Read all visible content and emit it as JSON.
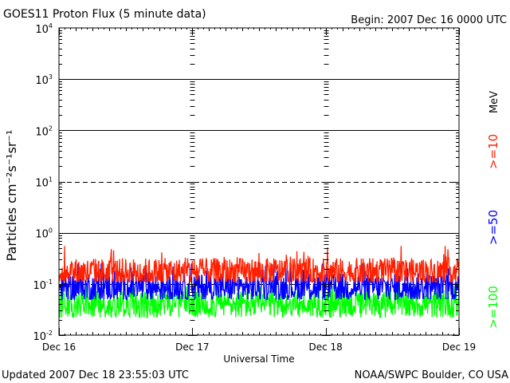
{
  "header": {
    "title": "GOES11 Proton Flux (5 minute data)",
    "begin": "Begin: 2007 Dec 16 0000 UTC"
  },
  "footer": {
    "updated": "Updated 2007 Dec 18 23:55:03 UTC",
    "source": "NOAA/SWPC Boulder, CO USA"
  },
  "chart_data": {
    "type": "line",
    "title": "GOES11 Proton Flux (5 minute data)",
    "xlabel": "Universal Time",
    "ylabel": "Particles cm⁻²s⁻¹sr⁻¹",
    "y_scale": "log",
    "ylim": [
      0.01,
      10000
    ],
    "y_ticks": [
      {
        "value": 0.01,
        "base": "10",
        "exp": "-2"
      },
      {
        "value": 0.1,
        "base": "10",
        "exp": "-1"
      },
      {
        "value": 1,
        "base": "10",
        "exp": "0"
      },
      {
        "value": 10,
        "base": "10",
        "exp": "1"
      },
      {
        "value": 100,
        "base": "10",
        "exp": "2"
      },
      {
        "value": 1000,
        "base": "10",
        "exp": "3"
      },
      {
        "value": 10000,
        "base": "10",
        "exp": "4"
      }
    ],
    "x_ticks": [
      "Dec 16",
      "Dec 17",
      "Dec 18",
      "Dec 19"
    ],
    "x_range_days": [
      0,
      3
    ],
    "unit_label": "MeV",
    "grid": "solid at 1, 10^2, 10^3; dashed at 10 and 10^-1",
    "series": [
      {
        "name": ">=10",
        "color": "#ff2000",
        "typical": 0.17,
        "min": 0.11,
        "max": 0.55
      },
      {
        "name": ">=50",
        "color": "#0000ff",
        "typical": 0.085,
        "min": 0.05,
        "max": 0.25
      },
      {
        "name": ">=100",
        "color": "#00ff00",
        "typical": 0.04,
        "min": 0.022,
        "max": 0.09
      }
    ]
  }
}
